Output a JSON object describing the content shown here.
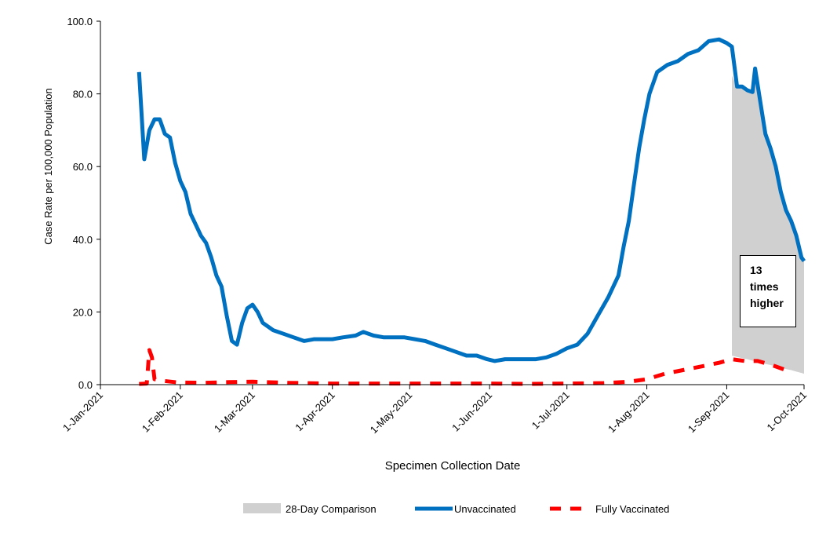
{
  "chart_data": {
    "type": "line",
    "y_label": "Case Rate per 100,000 Population",
    "x_label": "Specimen Collection Date",
    "annotation": "13 times higher",
    "legend": "bottom",
    "xlim": [
      "2021-01-01",
      "2021-10-01"
    ],
    "xticks": [
      {
        "value": "2021-01-01",
        "label": "1-Jan-2021"
      },
      {
        "value": "2021-02-01",
        "label": "1-Feb-2021"
      },
      {
        "value": "2021-03-01",
        "label": "1-Mar-2021"
      },
      {
        "value": "2021-04-01",
        "label": "1-Apr-2021"
      },
      {
        "value": "2021-05-01",
        "label": "1-May-2021"
      },
      {
        "value": "2021-06-01",
        "label": "1-Jun-2021"
      },
      {
        "value": "2021-07-01",
        "label": "1-Jul-2021"
      },
      {
        "value": "2021-08-01",
        "label": "1-Aug-2021"
      },
      {
        "value": "2021-09-01",
        "label": "1-Sep-2021"
      },
      {
        "value": "2021-10-01",
        "label": "1-Oct-2021"
      }
    ],
    "ylim": [
      0,
      100
    ],
    "yticks": [
      {
        "value": 0,
        "label": "0.0"
      },
      {
        "value": 20,
        "label": "20.0"
      },
      {
        "value": 40,
        "label": "40.0"
      },
      {
        "value": 60,
        "label": "60.0"
      },
      {
        "value": 80,
        "label": "80.0"
      },
      {
        "value": 100,
        "label": "100.0"
      }
    ],
    "series": [
      {
        "name": "28-Day Comparison",
        "color": "#d0d0d0",
        "style": "area",
        "x": [
          "2021-09-03",
          "2021-09-05",
          "2021-09-07",
          "2021-09-09",
          "2021-09-11",
          "2021-09-12",
          "2021-09-14",
          "2021-09-16",
          "2021-09-18",
          "2021-09-20",
          "2021-09-22",
          "2021-09-24",
          "2021-09-26",
          "2021-09-28",
          "2021-09-30",
          "2021-10-01"
        ],
        "values": [
          85,
          82,
          82,
          81,
          80.5,
          87,
          78,
          69,
          65,
          60,
          53,
          48,
          45,
          41,
          35,
          34
        ],
        "lower": [
          8,
          7.6,
          7.3,
          7,
          6.6,
          6.4,
          6.1,
          5.7,
          5.4,
          5,
          4.7,
          4.3,
          4,
          3.6,
          3.2,
          3
        ]
      },
      {
        "name": "Unvaccinated",
        "color": "#0070c0",
        "style": "solid",
        "x": [
          "2021-01-16",
          "2021-01-18",
          "2021-01-20",
          "2021-01-22",
          "2021-01-24",
          "2021-01-26",
          "2021-01-28",
          "2021-01-30",
          "2021-02-01",
          "2021-02-03",
          "2021-02-05",
          "2021-02-07",
          "2021-02-09",
          "2021-02-11",
          "2021-02-13",
          "2021-02-15",
          "2021-02-17",
          "2021-02-19",
          "2021-02-21",
          "2021-02-23",
          "2021-02-25",
          "2021-02-27",
          "2021-03-01",
          "2021-03-03",
          "2021-03-05",
          "2021-03-09",
          "2021-03-13",
          "2021-03-17",
          "2021-03-21",
          "2021-03-25",
          "2021-04-01",
          "2021-04-05",
          "2021-04-10",
          "2021-04-13",
          "2021-04-17",
          "2021-04-21",
          "2021-04-25",
          "2021-04-29",
          "2021-05-03",
          "2021-05-07",
          "2021-05-11",
          "2021-05-15",
          "2021-05-19",
          "2021-05-23",
          "2021-05-27",
          "2021-05-31",
          "2021-06-03",
          "2021-06-07",
          "2021-06-13",
          "2021-06-19",
          "2021-06-23",
          "2021-06-27",
          "2021-07-01",
          "2021-07-05",
          "2021-07-09",
          "2021-07-13",
          "2021-07-17",
          "2021-07-21",
          "2021-07-23",
          "2021-07-25",
          "2021-07-27",
          "2021-07-29",
          "2021-07-31",
          "2021-08-02",
          "2021-08-05",
          "2021-08-09",
          "2021-08-13",
          "2021-08-17",
          "2021-08-21",
          "2021-08-25",
          "2021-08-29",
          "2021-09-01",
          "2021-09-03",
          "2021-09-05",
          "2021-09-07",
          "2021-09-09",
          "2021-09-11",
          "2021-09-12",
          "2021-09-14",
          "2021-09-16",
          "2021-09-18",
          "2021-09-20",
          "2021-09-22",
          "2021-09-24",
          "2021-09-26",
          "2021-09-28",
          "2021-09-30",
          "2021-10-01"
        ],
        "values": [
          86,
          62,
          70,
          73,
          73,
          69,
          68,
          61,
          56,
          53,
          47,
          44,
          41,
          39,
          35,
          30,
          27,
          19,
          12,
          11,
          17,
          21,
          22,
          20,
          17,
          15,
          14,
          13,
          12,
          12.5,
          12.5,
          13,
          13.5,
          14.5,
          13.5,
          13,
          13,
          13,
          12.5,
          12,
          11,
          10,
          9,
          8,
          8,
          7,
          6.5,
          7,
          7,
          7,
          7.5,
          8.5,
          10,
          11,
          14,
          19,
          24,
          30,
          38,
          45,
          55,
          65,
          73,
          80,
          86,
          88,
          89,
          91,
          92,
          94.5,
          95,
          94,
          93,
          82,
          82,
          81,
          80.5,
          87,
          78,
          69,
          65,
          60,
          53,
          48,
          45,
          41,
          35,
          34
        ]
      },
      {
        "name": "Fully Vaccinated",
        "color": "#ff0000",
        "style": "dashed",
        "x": [
          "2021-01-16",
          "2021-01-19",
          "2021-01-20",
          "2021-01-21",
          "2021-01-22",
          "2021-01-26",
          "2021-01-31",
          "2021-02-10",
          "2021-02-20",
          "2021-03-01",
          "2021-03-15",
          "2021-04-01",
          "2021-05-01",
          "2021-06-01",
          "2021-06-15",
          "2021-07-01",
          "2021-07-15",
          "2021-07-25",
          "2021-08-01",
          "2021-08-08",
          "2021-08-15",
          "2021-08-22",
          "2021-08-29",
          "2021-09-03",
          "2021-09-08",
          "2021-09-13",
          "2021-09-18",
          "2021-09-24"
        ],
        "values": [
          0.2,
          0.3,
          9.5,
          7.5,
          1.5,
          1,
          0.6,
          0.5,
          0.7,
          0.8,
          0.5,
          0.3,
          0.3,
          0.3,
          0.2,
          0.3,
          0.4,
          0.8,
          1.5,
          3,
          4,
          5,
          6,
          7,
          6.5,
          6.5,
          5.5,
          4
        ]
      }
    ]
  }
}
